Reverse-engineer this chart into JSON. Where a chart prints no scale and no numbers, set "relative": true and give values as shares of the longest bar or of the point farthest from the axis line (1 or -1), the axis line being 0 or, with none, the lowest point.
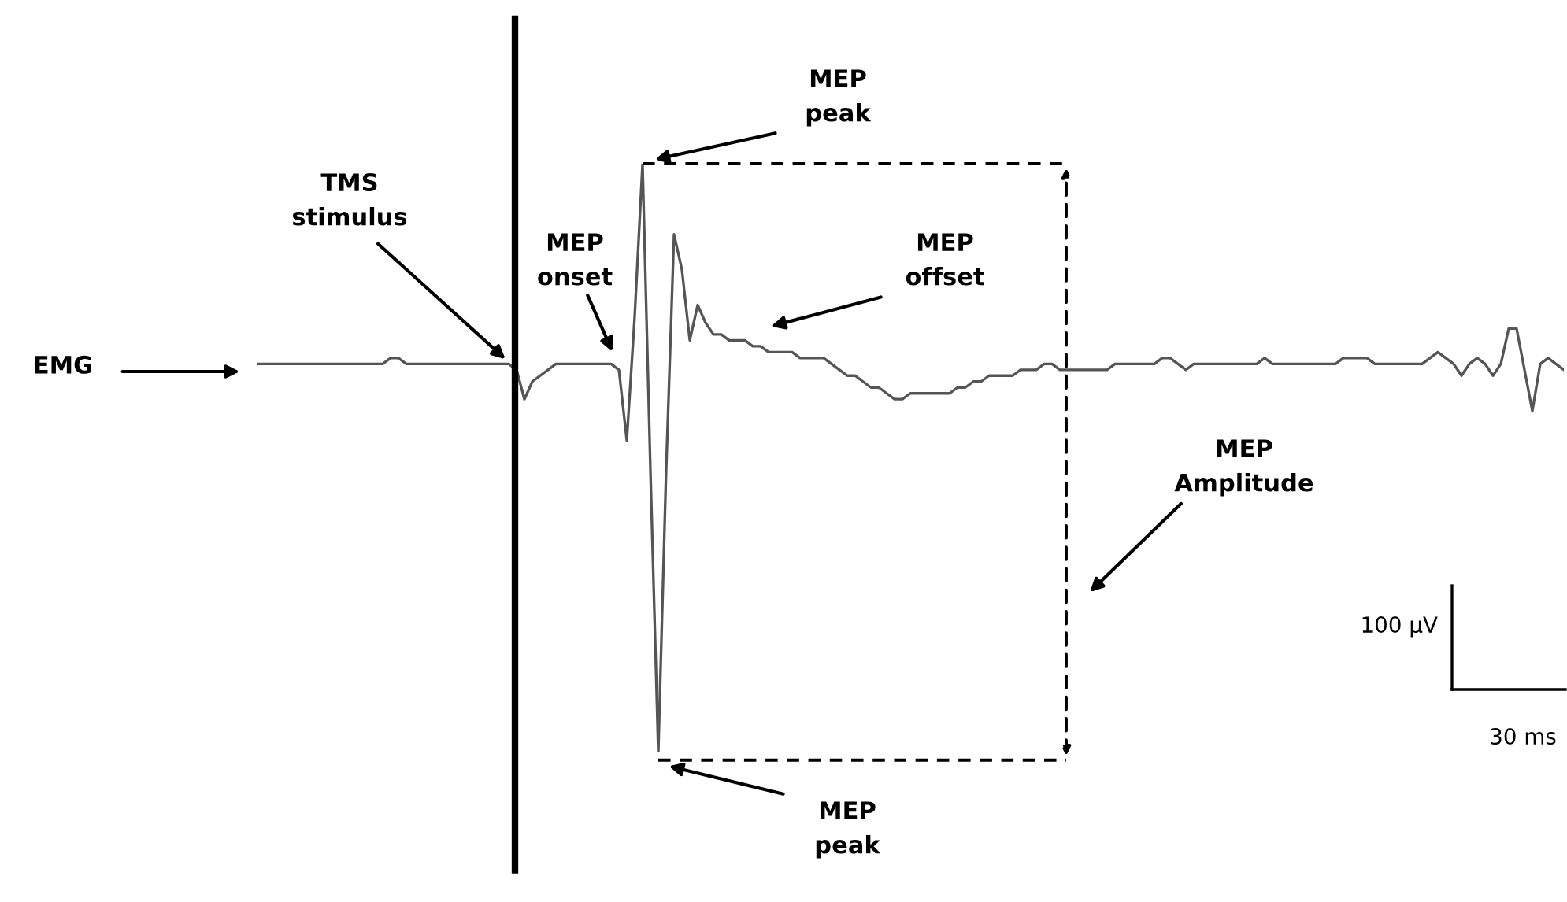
{
  "chart_data": {
    "type": "line",
    "relative": true,
    "color": "#555555",
    "categories": [
      null,
      null,
      null,
      null,
      null,
      null,
      null,
      null,
      null,
      null,
      null,
      null,
      null,
      null,
      null,
      null,
      null,
      null,
      null,
      null,
      null,
      null,
      null,
      null,
      null,
      null,
      null,
      null,
      null,
      null,
      null,
      null,
      null,
      null,
      null,
      null,
      null,
      null,
      null,
      null,
      null,
      null,
      null,
      null,
      null,
      null,
      null,
      null,
      null,
      null,
      null,
      null,
      null,
      null,
      null,
      null,
      null,
      null,
      null,
      null,
      null,
      null,
      null,
      null,
      null,
      null,
      null,
      null,
      null,
      null,
      null,
      null,
      null,
      null,
      null,
      null,
      null,
      null,
      null,
      null,
      null,
      null,
      null,
      null,
      null,
      null,
      null,
      null,
      null,
      null,
      null,
      null,
      null,
      null,
      null,
      null,
      null,
      null,
      null,
      null,
      null,
      null,
      null,
      null,
      null,
      null,
      null,
      null,
      null,
      null,
      null,
      null,
      null,
      null,
      null,
      null,
      null,
      null,
      null,
      null,
      null,
      null,
      null,
      null,
      null,
      null,
      null,
      null,
      null,
      null,
      null,
      null,
      null,
      null,
      null,
      null,
      null,
      null,
      null,
      null,
      null,
      null,
      null,
      null,
      null,
      null,
      null,
      null,
      null,
      null,
      null,
      null,
      null,
      null,
      null,
      null,
      null,
      null,
      null,
      null,
      null,
      null,
      null,
      null,
      null,
      null,
      null
    ],
    "values": [
      0.66,
      0.66,
      0.66,
      0.66,
      0.66,
      0.66,
      0.66,
      0.66,
      0.66,
      0.66,
      0.66,
      0.66,
      0.66,
      0.66,
      0.66,
      0.66,
      0.66,
      0.67,
      0.67,
      0.66,
      0.66,
      0.66,
      0.66,
      0.66,
      0.66,
      0.66,
      0.66,
      0.66,
      0.66,
      0.66,
      0.66,
      0.66,
      0.66,
      0.65,
      0.6,
      0.63,
      0.64,
      0.65,
      0.66,
      0.66,
      0.66,
      0.66,
      0.66,
      0.66,
      0.66,
      0.66,
      0.65,
      0.53,
      0.74,
      1,
      0.48,
      0,
      0.48,
      0.88,
      0.82,
      0.7,
      0.76,
      0.73,
      0.71,
      0.71,
      0.7,
      0.7,
      0.7,
      0.69,
      0.69,
      0.68,
      0.68,
      0.68,
      0.68,
      0.67,
      0.67,
      0.67,
      0.67,
      0.66,
      0.65,
      0.64,
      0.64,
      0.63,
      0.62,
      0.62,
      0.61,
      0.6,
      0.6,
      0.61,
      0.61,
      0.61,
      0.61,
      0.61,
      0.61,
      0.62,
      0.62,
      0.63,
      0.63,
      0.64,
      0.64,
      0.64,
      0.64,
      0.65,
      0.65,
      0.65,
      0.66,
      0.66,
      0.65,
      0.65,
      0.65,
      0.65,
      0.65,
      0.65,
      0.65,
      0.66,
      0.66,
      0.66,
      0.66,
      0.66,
      0.66,
      0.67,
      0.67,
      0.66,
      0.65,
      0.66,
      0.66,
      0.66,
      0.66,
      0.66,
      0.66,
      0.66,
      0.66,
      0.66,
      0.67,
      0.66,
      0.66,
      0.66,
      0.66,
      0.66,
      0.66,
      0.66,
      0.66,
      0.66,
      0.67,
      0.67,
      0.67,
      0.67,
      0.66,
      0.66,
      0.66,
      0.66,
      0.66,
      0.66,
      0.66,
      0.67,
      0.68,
      0.67,
      0.66,
      0.64,
      0.66,
      0.67,
      0.66,
      0.64,
      0.66,
      0.72,
      0.72,
      0.65,
      0.58,
      0.66,
      0.67,
      0.66,
      0.65
    ],
    "annotations": [
      "EMG",
      "TMS\nstimulus",
      "MEP\npeak",
      "MEP\nonset",
      "MEP\noffset",
      "MEP\nAmplitude",
      "MEP\npeak",
      "100 µV",
      "30 ms"
    ]
  }
}
